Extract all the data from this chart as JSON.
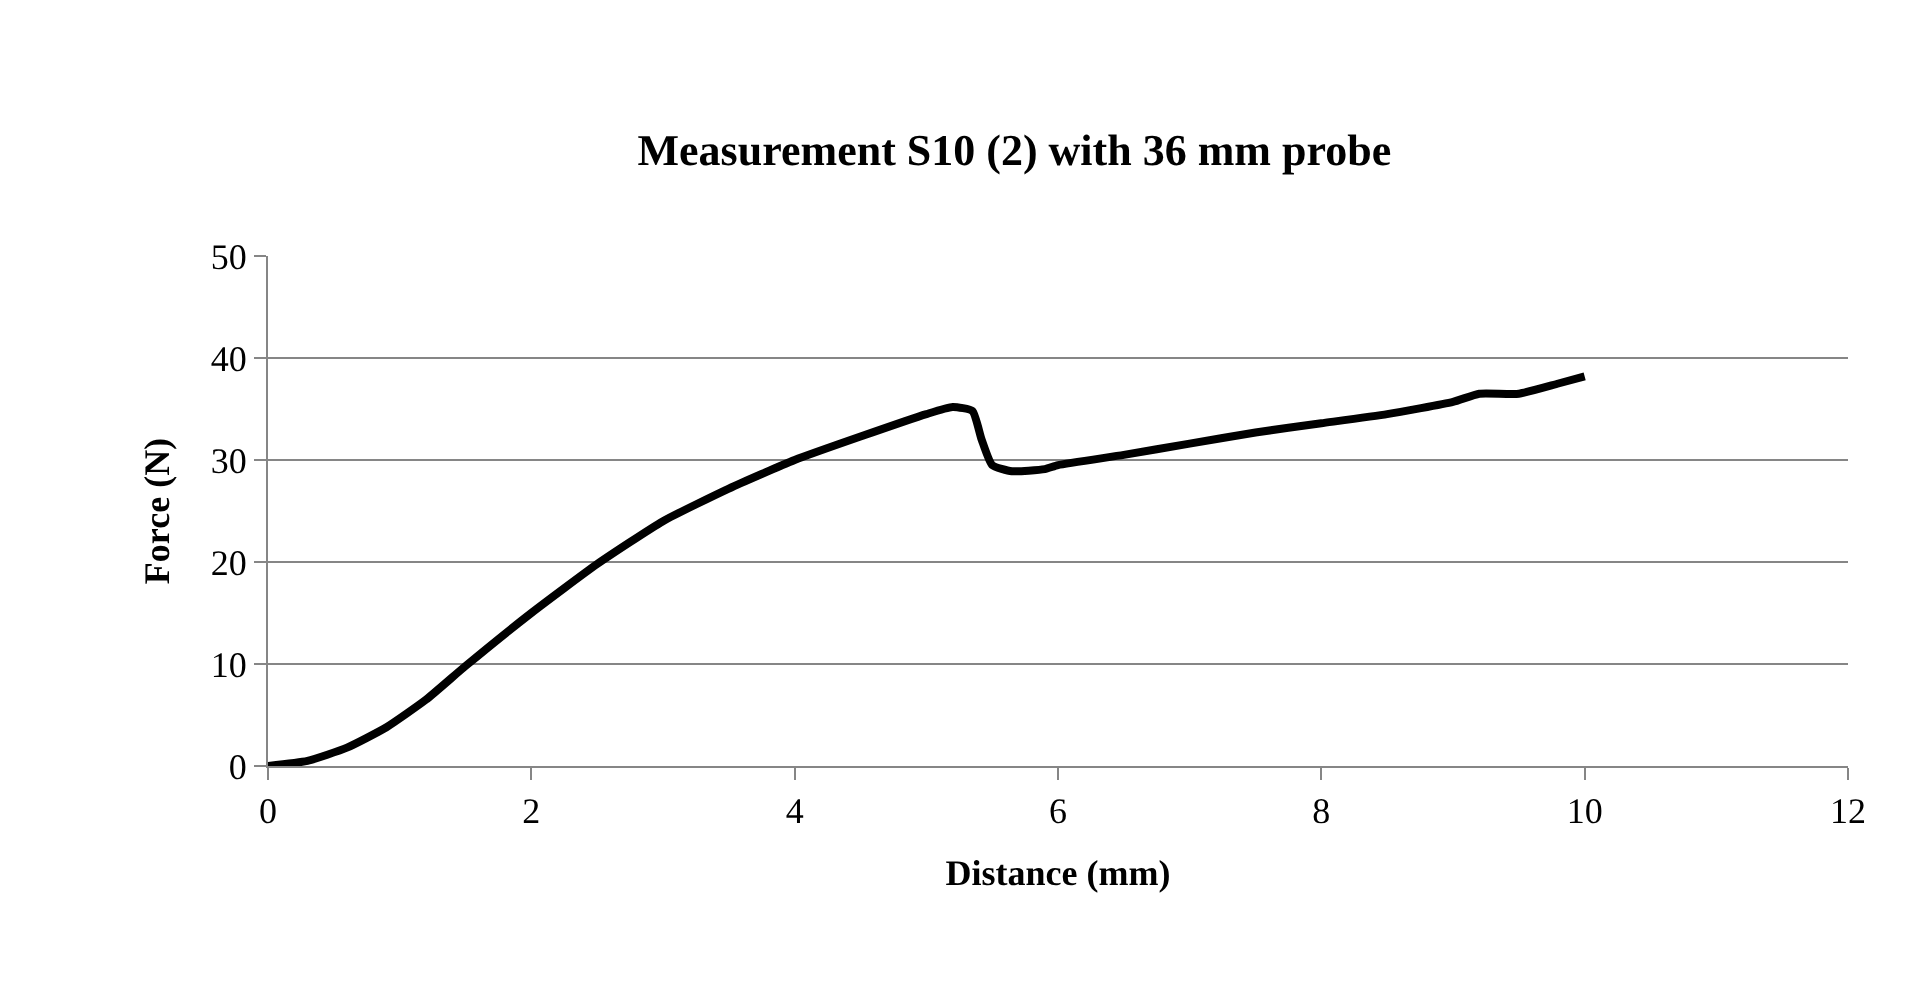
{
  "chart_data": {
    "type": "line",
    "title": "Measurement S10 (2) with 36 mm probe",
    "xlabel": "Distance (mm)",
    "ylabel": "Force (N)",
    "xlim": [
      0,
      12
    ],
    "xticks": [
      0,
      2,
      4,
      6,
      8,
      10,
      12
    ],
    "ylim": [
      0,
      50
    ],
    "yticks": [
      0,
      10,
      20,
      30,
      40,
      50
    ],
    "grid": "y",
    "legend": false,
    "marker": "none",
    "line_style": "solid",
    "series": [
      {
        "color": "#000000",
        "x": [
          0,
          0.3,
          0.6,
          0.9,
          1.2,
          1.5,
          2,
          2.5,
          3,
          3.5,
          4,
          4.5,
          5,
          5.2,
          5.35,
          5.42,
          5.5,
          5.65,
          5.9,
          6,
          6.5,
          7,
          7.5,
          8,
          8.5,
          9,
          9.2,
          9.5,
          9.8,
          10
        ],
        "values": [
          0,
          0.5,
          1.8,
          3.8,
          6.5,
          9.8,
          15,
          19.8,
          24,
          27.2,
          30,
          32.3,
          34.5,
          35.2,
          34.8,
          32,
          29.5,
          28.9,
          29.1,
          29.5,
          30.5,
          31.6,
          32.7,
          33.6,
          34.5,
          35.7,
          36.5,
          36.5,
          37.5,
          38.2
        ]
      }
    ]
  }
}
